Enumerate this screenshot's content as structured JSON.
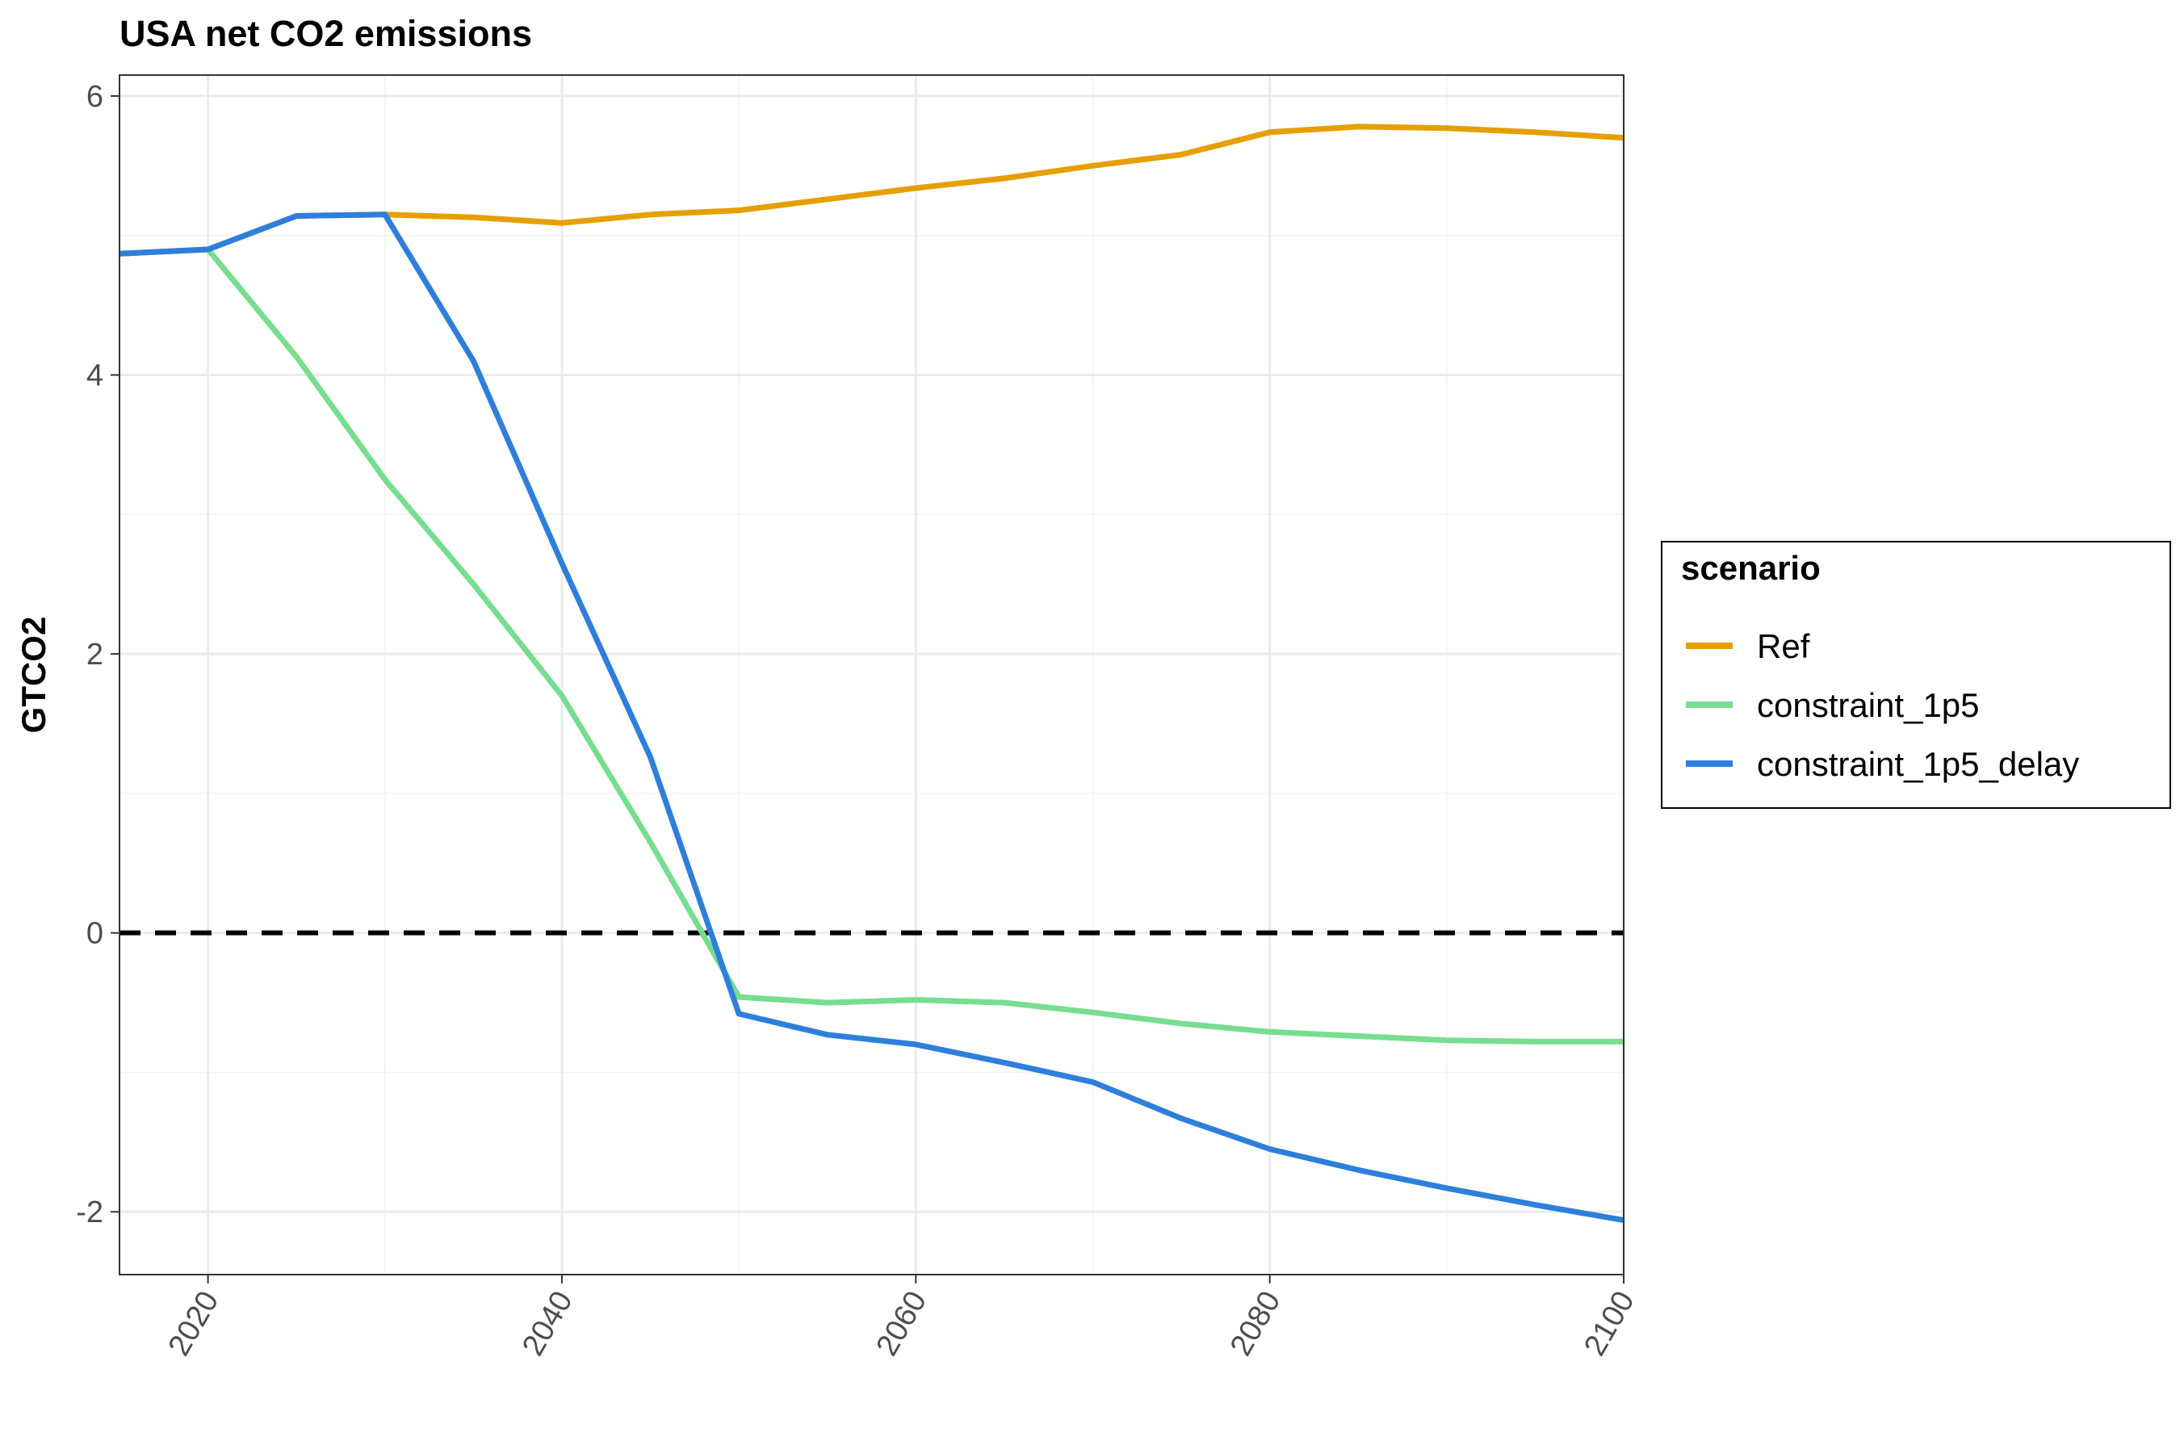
{
  "chart_data": {
    "type": "line",
    "title": "USA net CO2 emissions",
    "xlabel": "",
    "ylabel": "GTCO2",
    "xlim": [
      2015,
      2100
    ],
    "ylim": [
      -2.45,
      6.15
    ],
    "x_ticks": [
      2020,
      2040,
      2060,
      2080,
      2100
    ],
    "y_ticks": [
      -2,
      0,
      2,
      4,
      6
    ],
    "grid": true,
    "reference_line": {
      "y": 0,
      "style": "dashed",
      "color": "#000000"
    },
    "legend": {
      "title": "scenario",
      "position": "right"
    },
    "series": [
      {
        "name": "Ref",
        "color": "#E69F00",
        "points": [
          [
            2015,
            4.87
          ],
          [
            2020,
            4.9
          ],
          [
            2025,
            5.14
          ],
          [
            2030,
            5.15
          ],
          [
            2035,
            5.13
          ],
          [
            2040,
            5.09
          ],
          [
            2045,
            5.15
          ],
          [
            2050,
            5.18
          ],
          [
            2055,
            5.26
          ],
          [
            2060,
            5.34
          ],
          [
            2065,
            5.41
          ],
          [
            2070,
            5.5
          ],
          [
            2075,
            5.58
          ],
          [
            2080,
            5.74
          ],
          [
            2085,
            5.78
          ],
          [
            2090,
            5.77
          ],
          [
            2095,
            5.74
          ],
          [
            2100,
            5.7
          ]
        ]
      },
      {
        "name": "constraint_1p5",
        "color": "#77DD8F",
        "points": [
          [
            2015,
            4.87
          ],
          [
            2020,
            4.9
          ],
          [
            2025,
            4.13
          ],
          [
            2030,
            3.25
          ],
          [
            2035,
            2.5
          ],
          [
            2040,
            1.7
          ],
          [
            2045,
            0.65
          ],
          [
            2050,
            -0.46
          ],
          [
            2055,
            -0.5
          ],
          [
            2060,
            -0.48
          ],
          [
            2065,
            -0.5
          ],
          [
            2070,
            -0.57
          ],
          [
            2075,
            -0.65
          ],
          [
            2080,
            -0.71
          ],
          [
            2085,
            -0.74
          ],
          [
            2090,
            -0.77
          ],
          [
            2095,
            -0.78
          ],
          [
            2100,
            -0.78
          ]
        ]
      },
      {
        "name": "constraint_1p5_delay",
        "color": "#2E7FDC",
        "points": [
          [
            2015,
            4.87
          ],
          [
            2020,
            4.9
          ],
          [
            2025,
            5.14
          ],
          [
            2030,
            5.15
          ],
          [
            2035,
            4.1
          ],
          [
            2040,
            2.65
          ],
          [
            2045,
            1.26
          ],
          [
            2050,
            -0.58
          ],
          [
            2055,
            -0.73
          ],
          [
            2060,
            -0.8
          ],
          [
            2065,
            -0.93
          ],
          [
            2070,
            -1.07
          ],
          [
            2075,
            -1.33
          ],
          [
            2080,
            -1.55
          ],
          [
            2085,
            -1.7
          ],
          [
            2090,
            -1.83
          ],
          [
            2095,
            -1.95
          ],
          [
            2100,
            -2.06
          ]
        ]
      }
    ]
  }
}
